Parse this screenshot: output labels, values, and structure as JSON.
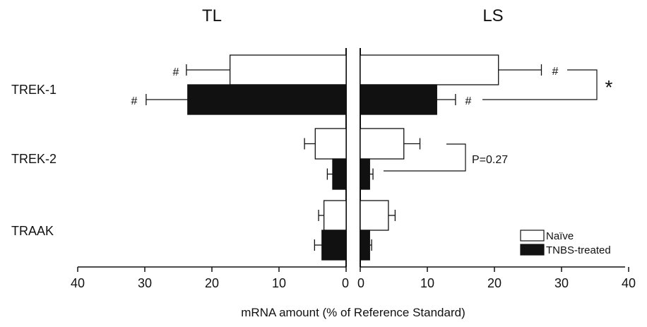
{
  "chart_data": {
    "type": "bar",
    "orientation": "horizontal-mirrored",
    "panels": [
      {
        "title": "TL",
        "direction": "left"
      },
      {
        "title": "LS",
        "direction": "right"
      }
    ],
    "categories": [
      "TREK-1",
      "TREK-2",
      "TRAAK"
    ],
    "series": [
      {
        "name": "Naïve",
        "color": "#ffffff",
        "TL": {
          "values": [
            17.3,
            4.6,
            3.3
          ],
          "errors": [
            6.5,
            1.6,
            0.8
          ]
        },
        "LS": {
          "values": [
            20.6,
            6.5,
            4.2
          ],
          "errors": [
            6.4,
            2.4,
            1.0
          ]
        }
      },
      {
        "name": "TNBS-treated",
        "color": "#111111",
        "TL": {
          "values": [
            23.6,
            2.0,
            3.6
          ],
          "errors": [
            6.2,
            0.8,
            1.1
          ]
        },
        "LS": {
          "values": [
            11.4,
            1.4,
            1.4
          ],
          "errors": [
            2.8,
            0.5,
            0.3
          ]
        }
      }
    ],
    "xlabel": "mRNA amount (% of Reference Standard)",
    "xlim": [
      0,
      40
    ],
    "ticks": [
      "40",
      "30",
      "20",
      "10",
      "0",
      "0",
      "10",
      "20",
      "30",
      "40"
    ],
    "annotations": {
      "hash": "#",
      "star": "*",
      "pvalue": "P=0.27"
    },
    "legend": {
      "position": "bottom-right"
    },
    "grid": false
  }
}
